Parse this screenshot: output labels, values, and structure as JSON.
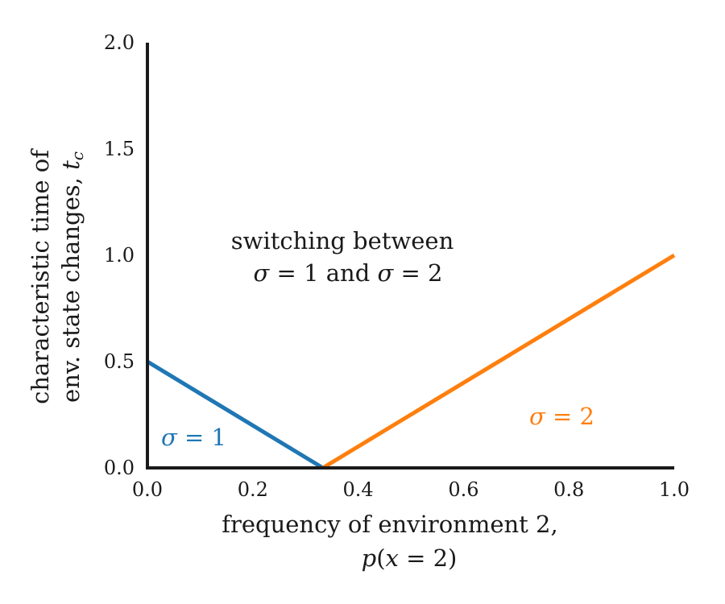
{
  "chart_data": {
    "type": "line",
    "xlabel": [
      "frequency of environment 2,",
      "p(x = 2)"
    ],
    "ylabel": [
      "characteristic time of",
      "env. state changes, t_c"
    ],
    "xlim": [
      0,
      1
    ],
    "ylim": [
      0,
      2
    ],
    "x_ticks": [
      0.0,
      0.2,
      0.4,
      0.6,
      0.8,
      1.0
    ],
    "y_ticks": [
      0.0,
      0.5,
      1.0,
      1.5,
      2.0
    ],
    "x_tick_labels": [
      "0.0",
      "0.2",
      "0.4",
      "0.6",
      "0.8",
      "1.0"
    ],
    "y_tick_labels": [
      "0.0",
      "0.5",
      "1.0",
      "1.5",
      "2.0"
    ],
    "grid": false,
    "series": [
      {
        "color": "#1f77b4",
        "x": [
          0.0,
          0.333
        ],
        "y": [
          0.5,
          0.0
        ]
      },
      {
        "color": "#ff7f0e",
        "x": [
          0.333,
          1.0
        ],
        "y": [
          0.0,
          1.0
        ]
      }
    ],
    "annotations": [
      {
        "text_lines": [
          "switching between",
          "σ = 1 and σ = 2"
        ],
        "color": "#1a1a1a"
      },
      {
        "text": "σ = 1",
        "color": "#1f77b4"
      },
      {
        "text": "σ = 2",
        "color": "#ff7f0e"
      }
    ]
  }
}
